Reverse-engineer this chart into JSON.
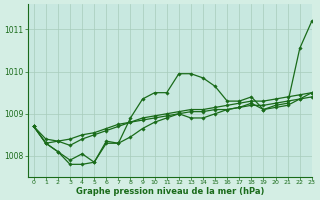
{
  "title": "",
  "xlabel": "Graphe pression niveau de la mer (hPa)",
  "background_color": "#d4eee4",
  "plot_bg_color": "#c8e8e0",
  "grid_color": "#a8ccbc",
  "line_color": "#1a6b1a",
  "xlim": [
    -0.5,
    23
  ],
  "ylim": [
    1007.5,
    1011.6
  ],
  "yticks": [
    1008,
    1009,
    1010,
    1011
  ],
  "xticks": [
    0,
    1,
    2,
    3,
    4,
    5,
    6,
    7,
    8,
    9,
    10,
    11,
    12,
    13,
    14,
    15,
    16,
    17,
    18,
    19,
    20,
    21,
    22,
    23
  ],
  "series": [
    [
      1008.7,
      1008.3,
      1008.1,
      1007.8,
      1007.8,
      1007.85,
      1008.3,
      1008.3,
      1008.9,
      1009.35,
      1009.5,
      1009.5,
      1009.95,
      1009.95,
      1009.85,
      1009.65,
      1009.3,
      1009.3,
      1009.4,
      1009.1,
      1009.2,
      1009.25,
      1010.55,
      1011.2
    ],
    [
      1008.7,
      1008.3,
      1008.1,
      1007.9,
      1008.05,
      1007.85,
      1008.35,
      1008.3,
      1008.45,
      1008.65,
      1008.8,
      1008.9,
      1009.0,
      1008.9,
      1008.9,
      1009.0,
      1009.1,
      1009.15,
      1009.25,
      1009.1,
      1009.15,
      1009.2,
      1009.35,
      1009.5
    ],
    [
      1008.7,
      1008.3,
      1008.35,
      1008.25,
      1008.4,
      1008.5,
      1008.6,
      1008.7,
      1008.8,
      1008.85,
      1008.9,
      1008.95,
      1009.0,
      1009.05,
      1009.05,
      1009.1,
      1009.1,
      1009.15,
      1009.2,
      1009.2,
      1009.25,
      1009.3,
      1009.35,
      1009.4
    ],
    [
      1008.7,
      1008.4,
      1008.35,
      1008.4,
      1008.5,
      1008.55,
      1008.65,
      1008.75,
      1008.8,
      1008.9,
      1008.95,
      1009.0,
      1009.05,
      1009.1,
      1009.1,
      1009.15,
      1009.2,
      1009.25,
      1009.3,
      1009.3,
      1009.35,
      1009.4,
      1009.45,
      1009.5
    ]
  ],
  "marker": "D",
  "marker_size": 1.8,
  "line_width": 0.9,
  "font_size_x": 4.5,
  "font_size_y": 5.5,
  "xlabel_fontsize": 6.0
}
